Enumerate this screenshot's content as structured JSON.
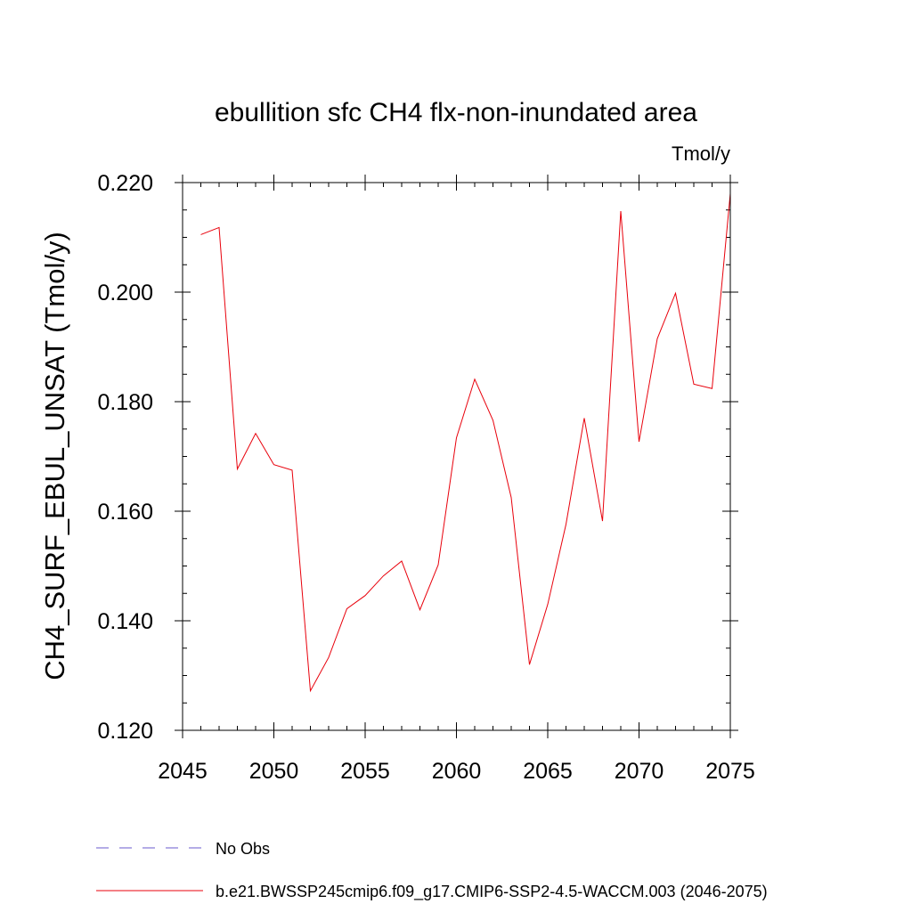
{
  "chart_data": {
    "type": "line",
    "title": "ebullition sfc CH4 flx-non-inundated area",
    "units_label": "Tmol/y",
    "ylabel": "CH4_SURF_EBUL_UNSAT  (Tmol/y)",
    "xlabel": "",
    "xlim": [
      2045,
      2075
    ],
    "ylim": [
      0.12,
      0.22
    ],
    "xticks": [
      2045,
      2050,
      2055,
      2060,
      2065,
      2070,
      2075
    ],
    "xtick_labels": [
      "2045",
      "2050",
      "2055",
      "2060",
      "2065",
      "2070",
      "2075"
    ],
    "yticks": [
      0.12,
      0.14,
      0.16,
      0.18,
      0.2,
      0.22
    ],
    "ytick_labels": [
      "0.120",
      "0.140",
      "0.160",
      "0.180",
      "0.200",
      "0.220"
    ],
    "x_minor_step": 1,
    "y_minor_step": 0.005,
    "series": [
      {
        "name": "b.e21.BWSSP245cmip6.f09_g17.CMIP6-SSP2-4.5-WACCM.003 (2046-2075)",
        "color": "#e8000b",
        "style": "solid",
        "x": [
          2046,
          2047,
          2048,
          2049,
          2050,
          2051,
          2052,
          2053,
          2054,
          2055,
          2056,
          2057,
          2058,
          2059,
          2060,
          2061,
          2062,
          2063,
          2064,
          2065,
          2066,
          2067,
          2068,
          2069,
          2070,
          2071,
          2072,
          2073,
          2074,
          2075
        ],
        "values": [
          0.2105,
          0.2118,
          0.1677,
          0.1742,
          0.1685,
          0.1675,
          0.1272,
          0.1333,
          0.1422,
          0.1446,
          0.1482,
          0.1509,
          0.142,
          0.1502,
          0.1734,
          0.1841,
          0.1766,
          0.1625,
          0.132,
          0.143,
          0.1576,
          0.177,
          0.1582,
          0.2148,
          0.1727,
          0.1915,
          0.1998,
          0.1832,
          0.1824,
          0.218
        ]
      }
    ],
    "legend": [
      {
        "label": "No Obs",
        "color": "#6a5acd",
        "style": "dashed"
      },
      {
        "label": "b.e21.BWSSP245cmip6.f09_g17.CMIP6-SSP2-4.5-WACCM.003 (2046-2075)",
        "color": "#e8000b",
        "style": "solid"
      }
    ],
    "legend_position": "bottom-left",
    "grid": false
  }
}
